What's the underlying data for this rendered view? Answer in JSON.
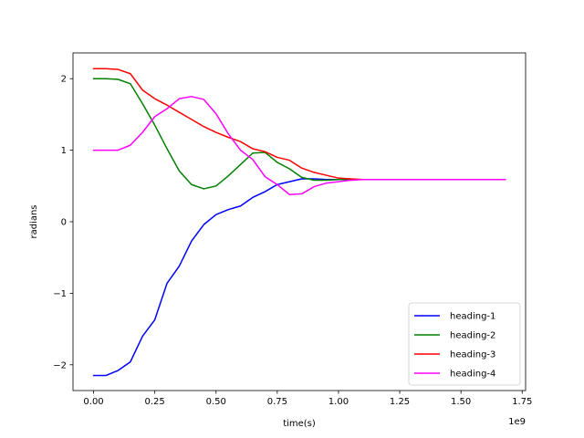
{
  "chart_data": {
    "type": "line",
    "title": "",
    "xlabel": "time(s)",
    "ylabel": "radians",
    "x_offset_label": "1e9",
    "x_scale": 1000000000,
    "xlim": [
      -0.084,
      1.764
    ],
    "ylim": [
      -2.36,
      2.36
    ],
    "xticks": [
      0.0,
      0.25,
      0.5,
      0.75,
      1.0,
      1.25,
      1.5,
      1.75
    ],
    "xtick_labels": [
      "0.00",
      "0.25",
      "0.50",
      "0.75",
      "1.00",
      "1.25",
      "1.50",
      "1.75"
    ],
    "yticks": [
      -2,
      -1,
      0,
      1,
      2
    ],
    "ytick_labels": [
      "−2",
      "−1",
      "0",
      "1",
      "2"
    ],
    "legend_position": "bottom-right",
    "x": [
      0.0,
      0.05,
      0.1,
      0.15,
      0.2,
      0.25,
      0.3,
      0.35,
      0.4,
      0.45,
      0.5,
      0.55,
      0.6,
      0.65,
      0.7,
      0.75,
      0.8,
      0.85,
      0.9,
      0.95,
      1.0,
      1.05,
      1.1,
      1.15,
      1.2,
      1.25,
      1.3,
      1.35,
      1.4,
      1.45,
      1.5,
      1.55,
      1.6,
      1.68
    ],
    "series": [
      {
        "name": "heading-1",
        "color": "#0000ff",
        "values": [
          -2.15,
          -2.15,
          -2.08,
          -1.96,
          -1.6,
          -1.37,
          -0.86,
          -0.62,
          -0.27,
          -0.04,
          0.1,
          0.17,
          0.22,
          0.34,
          0.42,
          0.52,
          0.56,
          0.6,
          0.6,
          0.59,
          0.59,
          0.59,
          0.59,
          0.59,
          0.59,
          0.59,
          0.59,
          0.59,
          0.59,
          0.59,
          0.59,
          0.59,
          0.59,
          0.59
        ]
      },
      {
        "name": "heading-2",
        "color": "#008000",
        "values": [
          2.0,
          2.0,
          1.99,
          1.93,
          1.65,
          1.35,
          1.02,
          0.71,
          0.52,
          0.46,
          0.5,
          0.64,
          0.8,
          0.96,
          0.97,
          0.83,
          0.74,
          0.62,
          0.58,
          0.58,
          0.59,
          0.59,
          0.59,
          0.59,
          0.59,
          0.59,
          0.59,
          0.59,
          0.59,
          0.59,
          0.59,
          0.59,
          0.59,
          0.59
        ]
      },
      {
        "name": "heading-3",
        "color": "#ff0000",
        "values": [
          2.14,
          2.14,
          2.13,
          2.07,
          1.84,
          1.72,
          1.63,
          1.53,
          1.43,
          1.33,
          1.25,
          1.18,
          1.12,
          1.02,
          0.98,
          0.9,
          0.86,
          0.75,
          0.69,
          0.65,
          0.61,
          0.6,
          0.59,
          0.59,
          0.59,
          0.59,
          0.59,
          0.59,
          0.59,
          0.59,
          0.59,
          0.59,
          0.59,
          0.59
        ]
      },
      {
        "name": "heading-4",
        "color": "#ff00ff",
        "values": [
          1.0,
          1.0,
          1.0,
          1.07,
          1.25,
          1.47,
          1.58,
          1.72,
          1.75,
          1.71,
          1.51,
          1.23,
          1.0,
          0.87,
          0.63,
          0.52,
          0.38,
          0.39,
          0.49,
          0.54,
          0.56,
          0.58,
          0.59,
          0.59,
          0.59,
          0.59,
          0.59,
          0.59,
          0.59,
          0.59,
          0.59,
          0.59,
          0.59,
          0.59
        ]
      }
    ]
  }
}
